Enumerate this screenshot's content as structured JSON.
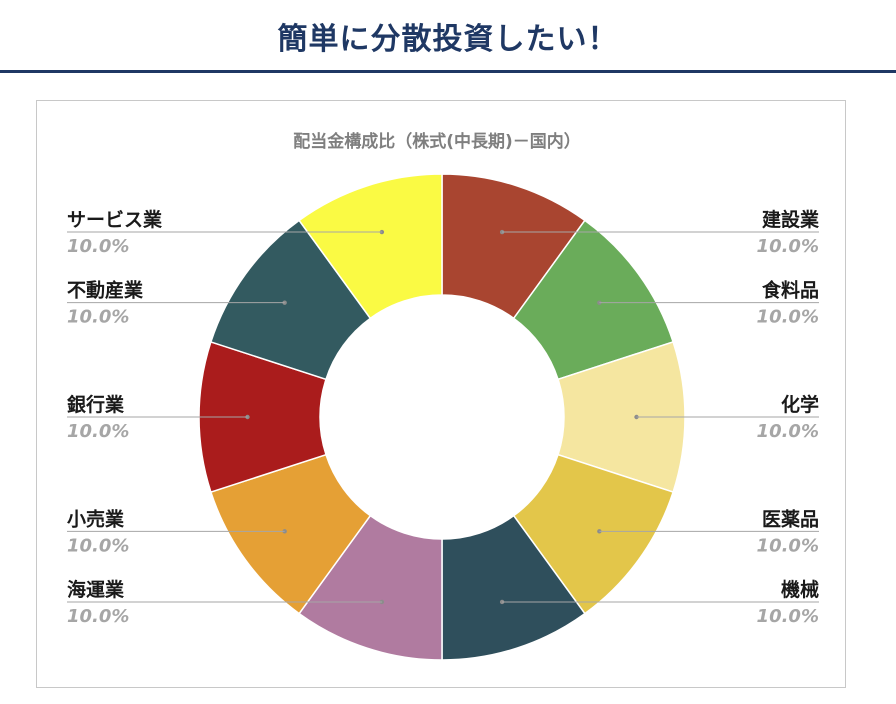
{
  "header": {
    "title": "簡単に分散投資したい！"
  },
  "chart_data": {
    "type": "pie",
    "donut": true,
    "title": "配当金構成比（株式(中長期)－国内）",
    "categories": [
      "建設業",
      "食料品",
      "化学",
      "医薬品",
      "機械",
      "海運業",
      "小売業",
      "銀行業",
      "不動産業",
      "サービス業"
    ],
    "values": [
      10.0,
      10.0,
      10.0,
      10.0,
      10.0,
      10.0,
      10.0,
      10.0,
      10.0,
      10.0
    ],
    "value_labels": [
      "10.0%",
      "10.0%",
      "10.0%",
      "10.0%",
      "10.0%",
      "10.0%",
      "10.0%",
      "10.0%",
      "10.0%",
      "10.0%"
    ],
    "colors": [
      "#a94530",
      "#6aac5a",
      "#f5e6a0",
      "#e3c64a",
      "#2f4f5c",
      "#b07ba0",
      "#e5a035",
      "#aa1c1c",
      "#335a60",
      "#fafa44"
    ],
    "legend": "none"
  }
}
